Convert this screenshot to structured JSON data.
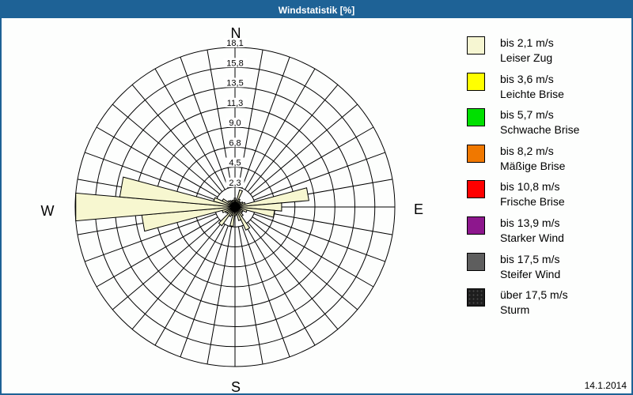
{
  "window": {
    "title": "Windstatistik [%]",
    "titlebar_color": "#1E6296",
    "border_color": "#1E6296",
    "date": "14.1.2014"
  },
  "legend": {
    "items": [
      {
        "speed": "bis 2,1 m/s",
        "name": "Leiser Zug",
        "color": "#F6F6D2",
        "speckled": false
      },
      {
        "speed": "bis 3,6 m/s",
        "name": "Leichte Brise",
        "color": "#FFFF00",
        "speckled": false
      },
      {
        "speed": "bis 5,7 m/s",
        "name": "Schwache Brise",
        "color": "#00E000",
        "speckled": false
      },
      {
        "speed": "bis 8,2 m/s",
        "name": "Mäßige Brise",
        "color": "#F07800",
        "speckled": false
      },
      {
        "speed": "bis 10,8 m/s",
        "name": "Frische Brise",
        "color": "#FF0000",
        "speckled": false
      },
      {
        "speed": "bis 13,9 m/s",
        "name": "Starker Wind",
        "color": "#8D178D",
        "speckled": false
      },
      {
        "speed": "bis 17,5 m/s",
        "name": "Steifer Wind",
        "color": "#5E5E5E",
        "speckled": false
      },
      {
        "speed": "über 17,5 m/s",
        "name": "Sturm",
        "color": "#1E1E1E",
        "speckled": true
      }
    ]
  },
  "chart_data": {
    "type": "wind_rose_bar",
    "title": "Windstatistik [%]",
    "units": "%",
    "max_value": 18.1,
    "num_rings": 8,
    "ring_labels": [
      "2,3",
      "4,5",
      "6,8",
      "9,0",
      "11,3",
      "13,5",
      "15,8",
      "18,1"
    ],
    "sector_width_deg": 10,
    "compass_labels": [
      "N",
      "E",
      "S",
      "W"
    ],
    "bar_color": "#F7F7D0",
    "grid_color": "#000000",
    "sectors": [
      {
        "bearing": 0,
        "value": 1.0
      },
      {
        "bearing": 10,
        "value": 0.8
      },
      {
        "bearing": 20,
        "value": 2.0
      },
      {
        "bearing": 30,
        "value": 1.0
      },
      {
        "bearing": 40,
        "value": 0.8
      },
      {
        "bearing": 50,
        "value": 0.8
      },
      {
        "bearing": 60,
        "value": 1.0
      },
      {
        "bearing": 70,
        "value": 1.2
      },
      {
        "bearing": 80,
        "value": 8.4
      },
      {
        "bearing": 90,
        "value": 5.3
      },
      {
        "bearing": 100,
        "value": 4.5
      },
      {
        "bearing": 110,
        "value": 1.4
      },
      {
        "bearing": 120,
        "value": 1.0
      },
      {
        "bearing": 130,
        "value": 1.0
      },
      {
        "bearing": 140,
        "value": 1.3
      },
      {
        "bearing": 150,
        "value": 2.9
      },
      {
        "bearing": 160,
        "value": 1.6
      },
      {
        "bearing": 170,
        "value": 0.9
      },
      {
        "bearing": 180,
        "value": 1.0
      },
      {
        "bearing": 190,
        "value": 2.2
      },
      {
        "bearing": 200,
        "value": 1.0
      },
      {
        "bearing": 210,
        "value": 1.2
      },
      {
        "bearing": 220,
        "value": 2.6
      },
      {
        "bearing": 230,
        "value": 1.1
      },
      {
        "bearing": 240,
        "value": 1.2
      },
      {
        "bearing": 250,
        "value": 1.5
      },
      {
        "bearing": 260,
        "value": 10.6
      },
      {
        "bearing": 270,
        "value": 18.1
      },
      {
        "bearing": 280,
        "value": 13.1
      },
      {
        "bearing": 290,
        "value": 2.5
      },
      {
        "bearing": 300,
        "value": 1.6
      },
      {
        "bearing": 310,
        "value": 1.0
      },
      {
        "bearing": 320,
        "value": 0.9
      },
      {
        "bearing": 330,
        "value": 0.8
      },
      {
        "bearing": 340,
        "value": 0.8
      },
      {
        "bearing": 350,
        "value": 0.8
      }
    ]
  }
}
